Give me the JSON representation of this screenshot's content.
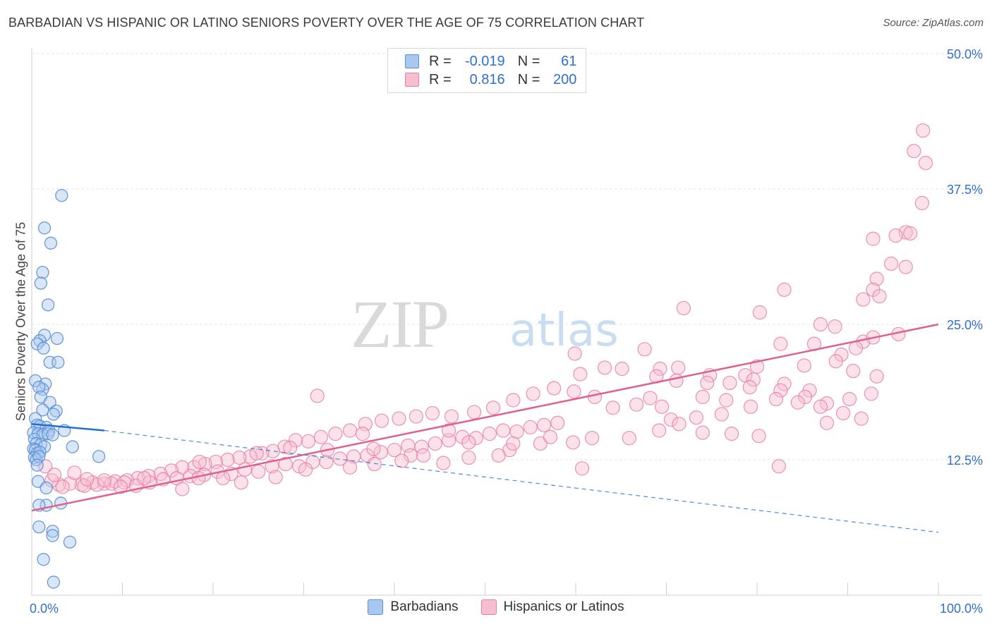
{
  "header": {
    "title": "BARBADIAN VS HISPANIC OR LATINO SENIORS POVERTY OVER THE AGE OF 75 CORRELATION CHART",
    "source": "Source: ZipAtlas.com"
  },
  "watermark": {
    "zip": "ZIP",
    "atlas": "atlas"
  },
  "legend": {
    "rows": [
      {
        "r_label": "R =",
        "r_value": "-0.019",
        "n_label": "N =",
        "n_value": "61"
      },
      {
        "r_label": "R =",
        "r_value": "0.816",
        "n_label": "N =",
        "n_value": "200"
      }
    ]
  },
  "colors": {
    "barbadian_fill": "#a9c8f0",
    "barbadian_stroke": "#5b8fd6",
    "barbadian_line": "#1f6fd0",
    "hispanic_fill": "#f6bfd0",
    "hispanic_stroke": "#e77fa3",
    "hispanic_line": "#e0608e",
    "tick_label": "#2f6fd1",
    "grid": "#e6e6e6"
  },
  "chart_data": {
    "type": "scatter",
    "title": "BARBADIAN VS HISPANIC OR LATINO SENIORS POVERTY OVER THE AGE OF 75 CORRELATION CHART",
    "xlabel": "",
    "ylabel": "Seniors Poverty Over the Age of 75",
    "xlim": [
      0,
      100
    ],
    "ylim": [
      0,
      50
    ],
    "x_tick_labels": [
      "0.0%",
      "100.0%"
    ],
    "y_ticks": [
      12.5,
      25.0,
      37.5,
      50.0
    ],
    "y_tick_labels": [
      "12.5%",
      "25.0%",
      "37.5%",
      "50.0%"
    ],
    "grid": true,
    "legend_position": "top-center",
    "series": [
      {
        "name": "Barbadians",
        "trend": {
          "x": [
            0,
            8
          ],
          "y": [
            15.8,
            15.2
          ],
          "dashed_extension": {
            "x": [
              8,
              100
            ],
            "y": [
              15.2,
              5.8
            ]
          }
        },
        "points": [
          [
            3.3,
            36.9
          ],
          [
            1.4,
            33.9
          ],
          [
            2.1,
            32.5
          ],
          [
            1.2,
            29.8
          ],
          [
            1.0,
            28.8
          ],
          [
            1.8,
            26.8
          ],
          [
            1.4,
            24.0
          ],
          [
            0.9,
            23.5
          ],
          [
            2.8,
            23.7
          ],
          [
            0.6,
            23.2
          ],
          [
            1.3,
            22.8
          ],
          [
            2.0,
            21.5
          ],
          [
            2.9,
            21.5
          ],
          [
            0.4,
            19.8
          ],
          [
            1.5,
            19.5
          ],
          [
            1.2,
            19.0
          ],
          [
            0.8,
            19.2
          ],
          [
            1.0,
            18.3
          ],
          [
            2.0,
            17.8
          ],
          [
            2.7,
            17.0
          ],
          [
            1.2,
            17.1
          ],
          [
            2.4,
            16.7
          ],
          [
            0.4,
            16.3
          ],
          [
            0.6,
            15.7
          ],
          [
            0.9,
            15.6
          ],
          [
            1.6,
            15.5
          ],
          [
            1.9,
            15.2
          ],
          [
            3.6,
            15.2
          ],
          [
            0.2,
            15.0
          ],
          [
            0.7,
            14.9
          ],
          [
            1.2,
            14.8
          ],
          [
            1.8,
            14.9
          ],
          [
            2.3,
            14.8
          ],
          [
            0.3,
            14.4
          ],
          [
            0.5,
            14.0
          ],
          [
            1.0,
            13.9
          ],
          [
            1.4,
            13.7
          ],
          [
            4.5,
            13.7
          ],
          [
            0.2,
            13.5
          ],
          [
            0.4,
            13.4
          ],
          [
            0.6,
            13.1
          ],
          [
            0.9,
            13.2
          ],
          [
            0.3,
            12.7
          ],
          [
            0.5,
            12.5
          ],
          [
            0.8,
            12.8
          ],
          [
            7.4,
            12.8
          ],
          [
            0.6,
            12.0
          ],
          [
            0.7,
            10.5
          ],
          [
            1.6,
            9.9
          ],
          [
            3.2,
            8.5
          ],
          [
            1.6,
            8.3
          ],
          [
            0.8,
            8.3
          ],
          [
            0.8,
            6.3
          ],
          [
            2.3,
            5.9
          ],
          [
            2.3,
            5.5
          ],
          [
            4.2,
            4.9
          ],
          [
            1.3,
            3.3
          ],
          [
            2.4,
            1.2
          ]
        ]
      },
      {
        "name": "Hispanics or Latinos",
        "trend": {
          "x": [
            0,
            100
          ],
          "y": [
            7.8,
            25.0
          ]
        },
        "points": [
          [
            98.3,
            42.9
          ],
          [
            97.3,
            41.0
          ],
          [
            98.6,
            39.9
          ],
          [
            98.2,
            36.2
          ],
          [
            96.4,
            33.5
          ],
          [
            95.3,
            33.2
          ],
          [
            96.9,
            33.4
          ],
          [
            92.8,
            32.9
          ],
          [
            96.4,
            30.3
          ],
          [
            94.8,
            30.6
          ],
          [
            93.2,
            29.2
          ],
          [
            92.8,
            28.2
          ],
          [
            93.5,
            27.6
          ],
          [
            91.7,
            27.3
          ],
          [
            83.0,
            28.2
          ],
          [
            80.3,
            26.1
          ],
          [
            71.9,
            26.5
          ],
          [
            87.0,
            25.0
          ],
          [
            88.6,
            24.8
          ],
          [
            91.7,
            23.4
          ],
          [
            92.8,
            23.8
          ],
          [
            95.6,
            24.1
          ],
          [
            86.3,
            23.2
          ],
          [
            90.9,
            22.8
          ],
          [
            82.6,
            23.2
          ],
          [
            89.3,
            22.2
          ],
          [
            88.7,
            21.6
          ],
          [
            85.2,
            21.2
          ],
          [
            80.0,
            21.1
          ],
          [
            90.6,
            20.7
          ],
          [
            93.2,
            20.2
          ],
          [
            74.8,
            20.3
          ],
          [
            78.7,
            20.3
          ],
          [
            79.6,
            19.9
          ],
          [
            83.0,
            19.5
          ],
          [
            85.8,
            18.9
          ],
          [
            69.3,
            20.9
          ],
          [
            67.6,
            22.7
          ],
          [
            71.3,
            21.0
          ],
          [
            68.9,
            20.2
          ],
          [
            65.1,
            20.9
          ],
          [
            63.2,
            21.0
          ],
          [
            59.9,
            22.3
          ],
          [
            60.5,
            20.4
          ],
          [
            71.1,
            19.8
          ],
          [
            74.5,
            19.6
          ],
          [
            77.0,
            19.6
          ],
          [
            79.2,
            19.2
          ],
          [
            82.6,
            18.9
          ],
          [
            85.3,
            18.3
          ],
          [
            87.7,
            17.7
          ],
          [
            90.2,
            18.1
          ],
          [
            92.6,
            18.6
          ],
          [
            74.0,
            18.3
          ],
          [
            76.6,
            18.0
          ],
          [
            79.3,
            17.4
          ],
          [
            82.1,
            18.1
          ],
          [
            84.5,
            17.8
          ],
          [
            87.0,
            17.4
          ],
          [
            89.5,
            16.8
          ],
          [
            91.5,
            16.3
          ],
          [
            76.1,
            16.7
          ],
          [
            73.3,
            16.4
          ],
          [
            70.5,
            16.2
          ],
          [
            68.2,
            18.2
          ],
          [
            66.7,
            17.6
          ],
          [
            64.1,
            17.3
          ],
          [
            62.1,
            18.3
          ],
          [
            59.8,
            18.8
          ],
          [
            57.6,
            19.1
          ],
          [
            55.3,
            18.6
          ],
          [
            53.1,
            18.0
          ],
          [
            50.9,
            17.3
          ],
          [
            48.8,
            16.9
          ],
          [
            46.3,
            16.5
          ],
          [
            44.2,
            16.8
          ],
          [
            42.4,
            16.5
          ],
          [
            40.5,
            16.3
          ],
          [
            38.6,
            16.1
          ],
          [
            36.8,
            15.8
          ],
          [
            35.1,
            15.2
          ],
          [
            33.5,
            14.9
          ],
          [
            31.9,
            14.6
          ],
          [
            30.5,
            14.2
          ],
          [
            29.1,
            14.3
          ],
          [
            27.9,
            13.7
          ],
          [
            26.6,
            13.3
          ],
          [
            25.4,
            13.1
          ],
          [
            24.1,
            12.8
          ],
          [
            22.9,
            12.7
          ],
          [
            21.6,
            12.5
          ],
          [
            20.3,
            12.3
          ],
          [
            19.1,
            12.1
          ],
          [
            17.9,
            11.8
          ],
          [
            16.6,
            11.8
          ],
          [
            15.4,
            11.5
          ],
          [
            14.2,
            11.2
          ],
          [
            12.9,
            11.0
          ],
          [
            11.7,
            10.8
          ],
          [
            10.5,
            10.6
          ],
          [
            9.2,
            10.5
          ],
          [
            8.0,
            10.3
          ],
          [
            6.7,
            10.4
          ],
          [
            5.5,
            10.2
          ],
          [
            4.2,
            10.3
          ],
          [
            3.0,
            10.2
          ],
          [
            2.2,
            10.6
          ],
          [
            1.5,
            11.9
          ],
          [
            2.5,
            11.1
          ],
          [
            4.7,
            11.3
          ],
          [
            5.8,
            10.1
          ],
          [
            7.2,
            10.2
          ],
          [
            8.8,
            10.3
          ],
          [
            10.2,
            10.4
          ],
          [
            11.5,
            10.1
          ],
          [
            13.0,
            10.4
          ],
          [
            14.5,
            10.7
          ],
          [
            16.0,
            10.8
          ],
          [
            17.5,
            11.0
          ],
          [
            19.0,
            11.1
          ],
          [
            20.5,
            11.4
          ],
          [
            22.0,
            11.2
          ],
          [
            23.5,
            11.6
          ],
          [
            25.0,
            11.4
          ],
          [
            26.5,
            11.9
          ],
          [
            28.0,
            12.1
          ],
          [
            29.5,
            11.9
          ],
          [
            31.0,
            12.3
          ],
          [
            32.5,
            12.3
          ],
          [
            34.0,
            12.6
          ],
          [
            35.5,
            12.8
          ],
          [
            37.0,
            12.9
          ],
          [
            38.5,
            13.2
          ],
          [
            40.0,
            13.4
          ],
          [
            41.5,
            13.8
          ],
          [
            43.0,
            13.7
          ],
          [
            44.5,
            14.0
          ],
          [
            46.0,
            14.3
          ],
          [
            47.5,
            14.6
          ],
          [
            49.0,
            14.5
          ],
          [
            50.5,
            14.9
          ],
          [
            52.0,
            15.2
          ],
          [
            53.5,
            15.1
          ],
          [
            55.0,
            15.5
          ],
          [
            56.5,
            15.7
          ],
          [
            58.0,
            15.9
          ],
          [
            18.5,
            12.3
          ],
          [
            28.5,
            13.6
          ],
          [
            24.8,
            13.1
          ],
          [
            32.6,
            13.4
          ],
          [
            36.5,
            14.9
          ],
          [
            37.7,
            13.5
          ],
          [
            41.8,
            12.9
          ],
          [
            45.4,
            12.2
          ],
          [
            48.2,
            12.7
          ],
          [
            52.7,
            13.4
          ],
          [
            56.1,
            14.0
          ],
          [
            59.7,
            14.1
          ],
          [
            61.8,
            14.5
          ],
          [
            65.9,
            14.5
          ],
          [
            69.2,
            15.2
          ],
          [
            71.4,
            15.8
          ],
          [
            74.0,
            15.0
          ],
          [
            77.2,
            14.9
          ],
          [
            80.2,
            14.7
          ],
          [
            87.7,
            15.9
          ],
          [
            82.4,
            11.9
          ],
          [
            60.7,
            11.7
          ],
          [
            48.2,
            14.1
          ],
          [
            53.1,
            14.0
          ],
          [
            57.2,
            14.6
          ],
          [
            46.0,
            15.2
          ],
          [
            43.2,
            12.9
          ],
          [
            40.8,
            12.4
          ],
          [
            37.8,
            12.1
          ],
          [
            35.1,
            11.8
          ],
          [
            30.2,
            11.6
          ],
          [
            26.9,
            10.9
          ],
          [
            23.1,
            10.4
          ],
          [
            21.1,
            10.8
          ],
          [
            18.4,
            10.8
          ],
          [
            16.6,
            9.8
          ],
          [
            12.4,
            10.8
          ],
          [
            9.8,
            10.0
          ],
          [
            8.0,
            10.6
          ],
          [
            6.1,
            10.7
          ],
          [
            3.4,
            10.0
          ],
          [
            31.5,
            18.4
          ],
          [
            51.5,
            12.9
          ],
          [
            69.5,
            17.4
          ]
        ]
      }
    ]
  },
  "bottom_legend": {
    "items": [
      {
        "label": "Barbadians"
      },
      {
        "label": "Hispanics or Latinos"
      }
    ]
  }
}
